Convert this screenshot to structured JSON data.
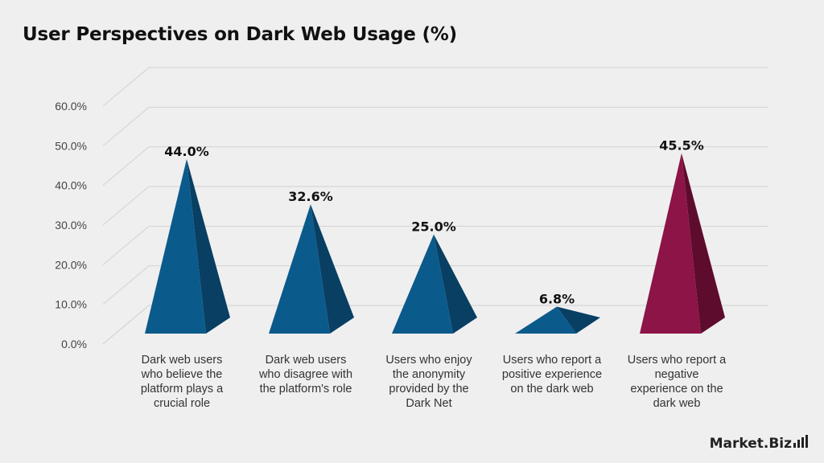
{
  "chart_data": {
    "type": "bar",
    "title": "User Perspectives on Dark Web Usage (%)",
    "categories": [
      "Dark web users who believe the platform plays a crucial role",
      "Dark web users who disagree with the platform's role",
      "Users who enjoy the anonymity provided by the Dark Net",
      "Users who report a positive experience on the dark web",
      "Users who report a negative experience on the dark web"
    ],
    "category_lines": [
      [
        "Dark web users",
        "who believe the",
        "platform plays a",
        "crucial role"
      ],
      [
        "Dark web users",
        "who disagree with",
        "the platform's role"
      ],
      [
        "Users who enjoy",
        "the anonymity",
        "provided by the",
        "Dark Net"
      ],
      [
        "Users who report a",
        "positive experience",
        "on the dark web"
      ],
      [
        "Users who report a",
        "negative",
        "experience on the",
        "dark web"
      ]
    ],
    "values": [
      44.0,
      32.6,
      25.0,
      6.8,
      45.5
    ],
    "value_labels": [
      "44.0%",
      "32.6%",
      "25.0%",
      "6.8%",
      "45.5%"
    ],
    "ylim": [
      0,
      60
    ],
    "y_ticks": [
      "0.0%",
      "10.0%",
      "20.0%",
      "30.0%",
      "40.0%",
      "50.0%",
      "60.0%"
    ],
    "xlabel": "",
    "ylabel": "",
    "grid": true,
    "colors": {
      "default_front": "#0b5a8c",
      "default_side": "#083f63",
      "highlight_front": "#8c1446",
      "highlight_side": "#5e0c2e"
    },
    "highlight_index": 4
  },
  "brand": {
    "logo_text": "Market.Biz"
  }
}
